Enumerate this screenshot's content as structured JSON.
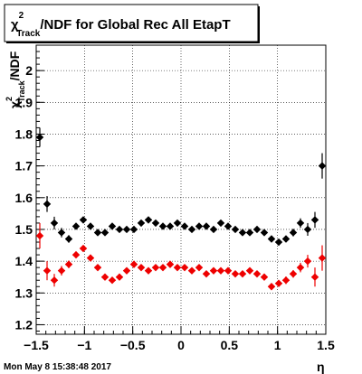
{
  "header": {
    "title_main": "/NDF for Global Rec All EtapT",
    "title_symbol": "χ",
    "title_sup": "2",
    "title_sub": "Track"
  },
  "footer": {
    "timestamp": "Mon May  8 15:38:48 2017"
  },
  "chart_data": {
    "type": "scatter",
    "title": "χ²_Track/NDF for Global Rec All EtapT",
    "xlabel": "η",
    "ylabel": "χ²_Track/NDF",
    "xlim": [
      -1.5,
      1.5
    ],
    "ylim": [
      1.17,
      2.08
    ],
    "grid": true,
    "x_ticks": [
      -1.5,
      -1,
      -0.5,
      0,
      0.5,
      1,
      1.5
    ],
    "x_tick_labels": [
      "−1.5",
      "−1",
      "−0.5",
      "0",
      "0.5",
      "1",
      "1.5"
    ],
    "y_ticks": [
      1.2,
      1.3,
      1.4,
      1.5,
      1.6,
      1.7,
      1.8,
      1.9,
      2.0
    ],
    "y_tick_labels": [
      "1.2",
      "1.3",
      "1.4",
      "1.5",
      "1.6",
      "1.7",
      "1.8",
      "1.9",
      "2"
    ],
    "series": [
      {
        "color": "#000000",
        "x": [
          -1.4625,
          -1.3875,
          -1.3125,
          -1.2375,
          -1.1625,
          -1.0875,
          -1.0125,
          -0.9375,
          -0.8625,
          -0.7875,
          -0.7125,
          -0.6375,
          -0.5625,
          -0.4875,
          -0.4125,
          -0.3375,
          -0.2625,
          -0.1875,
          -0.1125,
          -0.0375,
          0.0375,
          0.1125,
          0.1875,
          0.2625,
          0.3375,
          0.4125,
          0.4875,
          0.5625,
          0.6375,
          0.7125,
          0.7875,
          0.8625,
          0.9375,
          1.0125,
          1.0875,
          1.1625,
          1.2375,
          1.3125,
          1.3875,
          1.4625
        ],
        "y": [
          1.79,
          1.58,
          1.52,
          1.49,
          1.47,
          1.51,
          1.53,
          1.51,
          1.49,
          1.49,
          1.51,
          1.5,
          1.5,
          1.5,
          1.52,
          1.53,
          1.52,
          1.51,
          1.51,
          1.52,
          1.51,
          1.5,
          1.51,
          1.51,
          1.5,
          1.52,
          1.51,
          1.5,
          1.49,
          1.49,
          1.5,
          1.49,
          1.47,
          1.46,
          1.47,
          1.49,
          1.52,
          1.5,
          1.53,
          1.7
        ],
        "err": [
          0.03,
          0.025,
          0.02,
          0.015,
          0.012,
          0.01,
          0.01,
          0.01,
          0.01,
          0.008,
          0.008,
          0.008,
          0.008,
          0.008,
          0.008,
          0.008,
          0.008,
          0.008,
          0.008,
          0.008,
          0.008,
          0.008,
          0.008,
          0.008,
          0.008,
          0.008,
          0.008,
          0.008,
          0.008,
          0.008,
          0.008,
          0.01,
          0.01,
          0.01,
          0.01,
          0.012,
          0.015,
          0.02,
          0.025,
          0.04
        ]
      },
      {
        "color": "#ee0000",
        "x": [
          -1.4625,
          -1.3875,
          -1.3125,
          -1.2375,
          -1.1625,
          -1.0875,
          -1.0125,
          -0.9375,
          -0.8625,
          -0.7875,
          -0.7125,
          -0.6375,
          -0.5625,
          -0.4875,
          -0.4125,
          -0.3375,
          -0.2625,
          -0.1875,
          -0.1125,
          -0.0375,
          0.0375,
          0.1125,
          0.1875,
          0.2625,
          0.3375,
          0.4125,
          0.4875,
          0.5625,
          0.6375,
          0.7125,
          0.7875,
          0.8625,
          0.9375,
          1.0125,
          1.0875,
          1.1625,
          1.2375,
          1.3125,
          1.3875,
          1.4625
        ],
        "y": [
          1.48,
          1.37,
          1.34,
          1.37,
          1.39,
          1.42,
          1.44,
          1.41,
          1.38,
          1.35,
          1.34,
          1.35,
          1.37,
          1.39,
          1.38,
          1.37,
          1.38,
          1.38,
          1.39,
          1.38,
          1.38,
          1.37,
          1.38,
          1.36,
          1.37,
          1.37,
          1.37,
          1.36,
          1.36,
          1.37,
          1.36,
          1.35,
          1.32,
          1.33,
          1.34,
          1.36,
          1.38,
          1.4,
          1.35,
          1.41
        ],
        "err": [
          0.04,
          0.03,
          0.02,
          0.015,
          0.012,
          0.01,
          0.01,
          0.01,
          0.01,
          0.008,
          0.008,
          0.008,
          0.008,
          0.008,
          0.008,
          0.008,
          0.008,
          0.008,
          0.008,
          0.008,
          0.008,
          0.008,
          0.008,
          0.008,
          0.008,
          0.008,
          0.008,
          0.008,
          0.008,
          0.008,
          0.008,
          0.01,
          0.01,
          0.01,
          0.012,
          0.012,
          0.015,
          0.02,
          0.03,
          0.04
        ]
      }
    ]
  }
}
